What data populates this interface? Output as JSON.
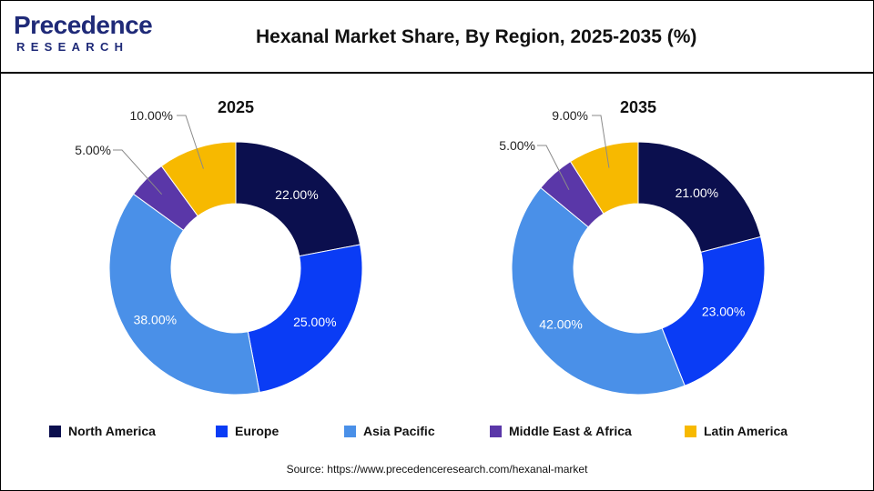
{
  "brand": {
    "logo_text": "Precedence",
    "logo_sub": "RESEARCH"
  },
  "title": "Hexanal Market Share, By Region, 2025-2035 (%)",
  "source": "Source: https://www.precedenceresearch.com/hexanal-market",
  "chart_data": [
    {
      "type": "pie",
      "style": "donut",
      "title": "2025",
      "categories": [
        "North America",
        "Europe",
        "Asia Pacific",
        "Middle East & Africa",
        "Latin America"
      ],
      "values": [
        22.0,
        25.0,
        38.0,
        5.0,
        10.0
      ],
      "labels": [
        "22.00%",
        "25.00%",
        "38.00%",
        "5.00%",
        "10.00%"
      ],
      "colors": [
        "#0b0f4e",
        "#0a3cf5",
        "#4a90e8",
        "#5a37a8",
        "#f7b900"
      ]
    },
    {
      "type": "pie",
      "style": "donut",
      "title": "2035",
      "categories": [
        "North America",
        "Europe",
        "Asia Pacific",
        "Middle East & Africa",
        "Latin America"
      ],
      "values": [
        21.0,
        23.0,
        42.0,
        5.0,
        9.0
      ],
      "labels": [
        "21.00%",
        "23.00%",
        "42.00%",
        "5.00%",
        "9.00%"
      ],
      "colors": [
        "#0b0f4e",
        "#0a3cf5",
        "#4a90e8",
        "#5a37a8",
        "#f7b900"
      ]
    }
  ],
  "legend": {
    "placement": "bottom",
    "items": [
      {
        "label": "North America",
        "color": "#0b0f4e"
      },
      {
        "label": "Europe",
        "color": "#0a3cf5"
      },
      {
        "label": "Asia Pacific",
        "color": "#4a90e8"
      },
      {
        "label": "Middle East & Africa",
        "color": "#5a37a8"
      },
      {
        "label": "Latin America",
        "color": "#f7b900"
      }
    ]
  }
}
